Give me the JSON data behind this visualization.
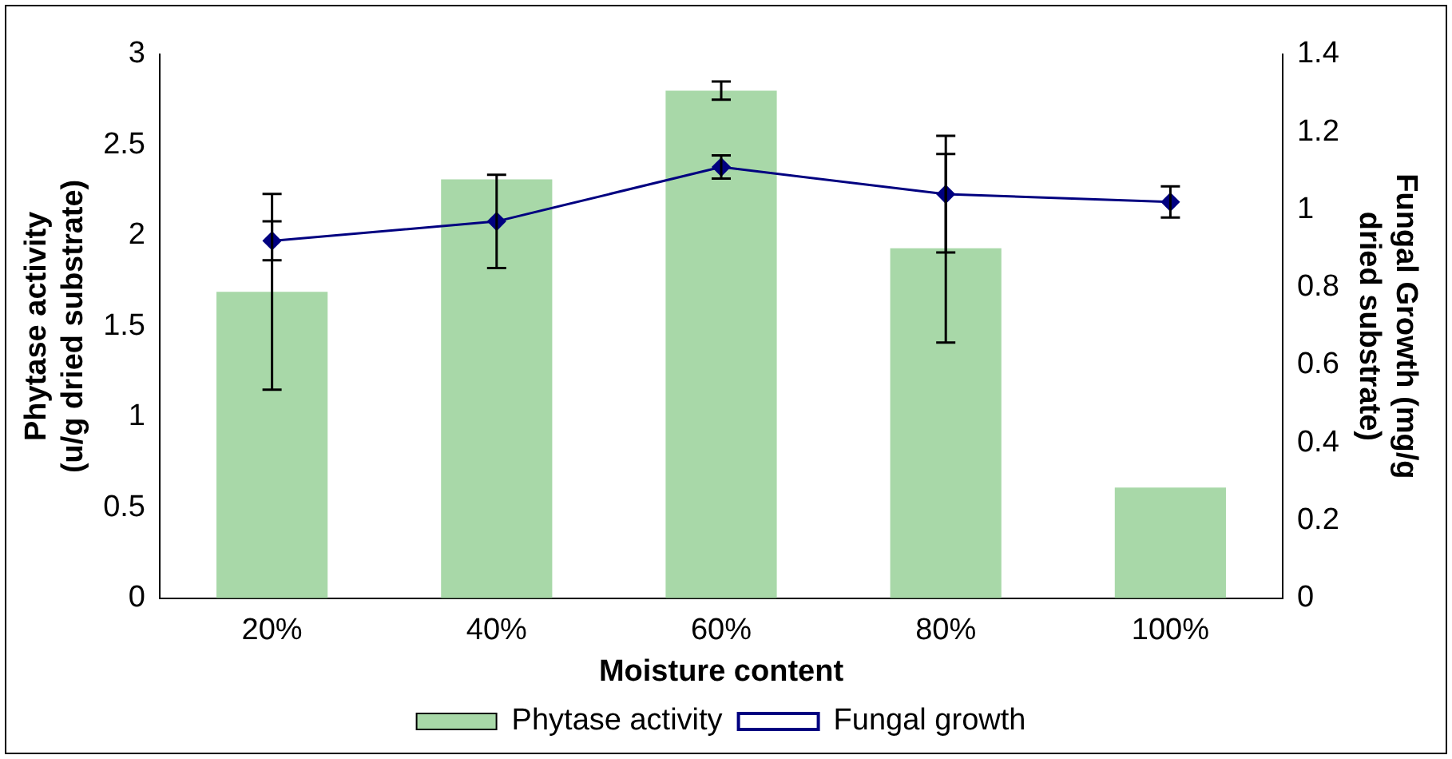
{
  "chart_data": {
    "type": "bar",
    "categories": [
      "20%",
      "40%",
      "60%",
      "80%",
      "100%"
    ],
    "xlabel": "Moisture content",
    "ylabel": "Phytase activity (u/g dried substrate)",
    "y2label": "Fungal Growth (mg/g dried substrate)",
    "series": [
      {
        "name": "Phytase activity",
        "color": "#a8d8a8",
        "values": [
          1.69,
          2.31,
          2.8,
          1.93,
          0.61
        ],
        "errors": [
          0.54,
          null,
          0.05,
          0.52,
          null
        ]
      },
      {
        "name": "Fungal growth",
        "type": "line",
        "axis": "y2",
        "color": "#000080",
        "marker": "diamond",
        "values": [
          0.92,
          0.97,
          1.11,
          1.04,
          1.02
        ],
        "errors": [
          0.05,
          0.12,
          0.03,
          0.15,
          0.04
        ]
      }
    ],
    "ylim": [
      0,
      3
    ],
    "yticks": [
      0,
      0.5,
      1,
      1.5,
      2,
      2.5,
      3
    ],
    "y2lim": [
      0,
      1.4
    ],
    "y2ticks": [
      0,
      0.2,
      0.4,
      0.6,
      0.8,
      1,
      1.2,
      1.4
    ],
    "grid": false,
    "legend": "bottom"
  }
}
